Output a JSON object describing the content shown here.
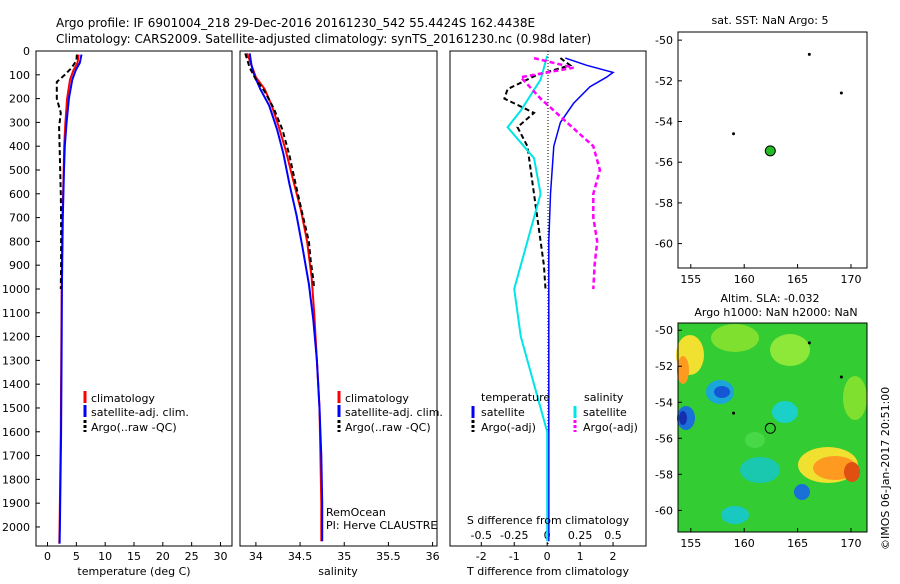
{
  "header": {
    "line1": "Argo profile: IF 6901004_218 29-Dec-2016 20161230_542 55.4424S 162.4438E",
    "line2": "Climatology: CARS2009. Satellite-adjusted climatology: synTS_20161230.nc (0.98d later)"
  },
  "colors": {
    "climatology": "#ff0000",
    "satellite": "#0000ff",
    "argo": "#000000",
    "sat_salinity": "#00e5e5",
    "argo_salinity": "#ff00ff"
  },
  "y_ticks": [
    "0",
    "100",
    "200",
    "300",
    "400",
    "500",
    "600",
    "700",
    "800",
    "900",
    "1000",
    "1100",
    "1200",
    "1300",
    "1400",
    "1500",
    "1600",
    "1700",
    "1800",
    "1900",
    "2000"
  ],
  "chart_data": [
    {
      "type": "line",
      "xlabel": "temperature (deg C)",
      "x_ticks": [
        "0",
        "5",
        "10",
        "15",
        "20",
        "25",
        "30"
      ],
      "xlim": [
        -2,
        32
      ],
      "ylim": [
        2080,
        0
      ],
      "legend": [
        "climatology",
        "satellite-adj. clim.",
        "Argo(..raw -QC)"
      ],
      "series": [
        {
          "name": "climatology",
          "points": [
            [
              5.4,
              15
            ],
            [
              5.2,
              50
            ],
            [
              4.5,
              80
            ],
            [
              3.9,
              120
            ],
            [
              3.4,
              200
            ],
            [
              3.1,
              300
            ],
            [
              2.9,
              400
            ],
            [
              2.8,
              500
            ],
            [
              2.7,
              600
            ],
            [
              2.6,
              700
            ],
            [
              2.55,
              800
            ],
            [
              2.5,
              900
            ],
            [
              2.45,
              1000
            ],
            [
              2.4,
              1200
            ],
            [
              2.35,
              1400
            ],
            [
              2.3,
              1600
            ],
            [
              2.2,
              1800
            ],
            [
              2.1,
              2000
            ],
            [
              2.05,
              2070
            ]
          ]
        },
        {
          "name": "satellite-adj. clim.",
          "points": [
            [
              5.9,
              15
            ],
            [
              5.6,
              50
            ],
            [
              4.9,
              80
            ],
            [
              4.3,
              120
            ],
            [
              3.7,
              200
            ],
            [
              3.3,
              300
            ],
            [
              3.0,
              400
            ],
            [
              2.85,
              500
            ],
            [
              2.75,
              600
            ],
            [
              2.65,
              700
            ],
            [
              2.6,
              800
            ],
            [
              2.55,
              900
            ],
            [
              2.5,
              1000
            ],
            [
              2.45,
              1200
            ],
            [
              2.4,
              1400
            ],
            [
              2.35,
              1600
            ],
            [
              2.25,
              1800
            ],
            [
              2.15,
              2000
            ],
            [
              2.1,
              2070
            ]
          ]
        },
        {
          "name": "Argo(..raw -QC)",
          "points": [
            [
              5.1,
              15
            ],
            [
              5.0,
              40
            ],
            [
              4.2,
              70
            ],
            [
              3.0,
              100
            ],
            [
              1.6,
              130
            ],
            [
              1.6,
              200
            ],
            [
              2.3,
              260
            ],
            [
              2.0,
              320
            ],
            [
              2.1,
              400
            ],
            [
              2.2,
              500
            ],
            [
              2.3,
              600
            ],
            [
              2.35,
              700
            ],
            [
              2.35,
              800
            ],
            [
              2.35,
              900
            ],
            [
              2.3,
              1000
            ]
          ]
        }
      ]
    },
    {
      "type": "line",
      "xlabel": "salinity",
      "x_ticks": [
        "34",
        "34.5",
        "35",
        "35.5",
        "36"
      ],
      "xlim": [
        33.82,
        36.05
      ],
      "ylim": [
        2080,
        0
      ],
      "legend": [
        "climatology",
        "satellite-adj. clim.",
        "Argo(..raw -QC)"
      ],
      "annotations": [
        "RemOcean",
        "PI: Herve CLAUSTRE"
      ],
      "series": [
        {
          "name": "climatology",
          "points": [
            [
              33.9,
              10
            ],
            [
              33.95,
              60
            ],
            [
              34.0,
              110
            ],
            [
              34.1,
              160
            ],
            [
              34.18,
              230
            ],
            [
              34.26,
              320
            ],
            [
              34.34,
              420
            ],
            [
              34.42,
              540
            ],
            [
              34.51,
              670
            ],
            [
              34.58,
              800
            ],
            [
              34.63,
              950
            ],
            [
              34.66,
              1100
            ],
            [
              34.69,
              1300
            ],
            [
              34.72,
              1500
            ],
            [
              34.73,
              1700
            ],
            [
              34.74,
              1900
            ],
            [
              34.74,
              2060
            ]
          ]
        },
        {
          "name": "satellite-adj. clim.",
          "points": [
            [
              33.93,
              10
            ],
            [
              33.95,
              60
            ],
            [
              33.98,
              100
            ],
            [
              34.05,
              160
            ],
            [
              34.15,
              230
            ],
            [
              34.24,
              330
            ],
            [
              34.31,
              430
            ],
            [
              34.38,
              560
            ],
            [
              34.46,
              690
            ],
            [
              34.53,
              830
            ],
            [
              34.6,
              980
            ],
            [
              34.65,
              1130
            ],
            [
              34.69,
              1300
            ],
            [
              34.72,
              1500
            ],
            [
              34.74,
              1700
            ],
            [
              34.75,
              1900
            ],
            [
              34.75,
              2060
            ]
          ]
        },
        {
          "name": "Argo(..raw -QC)",
          "points": [
            [
              33.88,
              10
            ],
            [
              33.93,
              70
            ],
            [
              34.0,
              120
            ],
            [
              34.1,
              170
            ],
            [
              34.2,
              240
            ],
            [
              34.3,
              330
            ],
            [
              34.38,
              440
            ],
            [
              34.45,
              560
            ],
            [
              34.53,
              690
            ],
            [
              34.6,
              800
            ],
            [
              34.62,
              880
            ],
            [
              34.65,
              960
            ],
            [
              34.66,
              1000
            ]
          ]
        }
      ]
    },
    {
      "type": "line",
      "xlabel": "T difference from climatology",
      "x_ticks": [
        "-2",
        "-1",
        "0",
        "1",
        "2"
      ],
      "secondary_xlabel": "S difference from climatology",
      "secondary_x_ticks": [
        "-0.5",
        "-0.25",
        "0",
        "0.25",
        "0.5"
      ],
      "xlim": [
        -2.95,
        3.0
      ],
      "ylim": [
        2080,
        0
      ],
      "legend_temperature_title": "temperature",
      "legend_salinity_title": "salinity",
      "legend": {
        "temperature": [
          "satellite",
          "Argo(-adj)"
        ],
        "salinity": [
          "satellite",
          "Argo(-adj)"
        ]
      },
      "series": [
        {
          "name": "temperature satellite",
          "points": [
            [
              0.55,
              30
            ],
            [
              1.2,
              60
            ],
            [
              2.0,
              90
            ],
            [
              1.8,
              110
            ],
            [
              1.3,
              150
            ],
            [
              0.8,
              220
            ],
            [
              0.4,
              300
            ],
            [
              0.2,
              400
            ],
            [
              0.1,
              600
            ],
            [
              0.05,
              800
            ],
            [
              0.05,
              1000
            ],
            [
              0.05,
              1500
            ],
            [
              0.05,
              2060
            ]
          ]
        },
        {
          "name": "temperature Argo(-adj)",
          "points": [
            [
              0.4,
              30
            ],
            [
              0.7,
              60
            ],
            [
              -0.3,
              100
            ],
            [
              -1.2,
              160
            ],
            [
              -1.3,
              200
            ],
            [
              -0.4,
              260
            ],
            [
              -0.9,
              320
            ],
            [
              -0.6,
              400
            ],
            [
              -0.5,
              500
            ],
            [
              -0.4,
              600
            ],
            [
              -0.3,
              700
            ],
            [
              -0.2,
              800
            ],
            [
              -0.1,
              900
            ],
            [
              -0.05,
              1000
            ]
          ]
        },
        {
          "name": "salinity satellite",
          "points": [
            [
              0.0,
              20
            ],
            [
              -0.05,
              120
            ],
            [
              -0.2,
              250
            ],
            [
              -0.3,
              320
            ],
            [
              -0.1,
              450
            ],
            [
              -0.05,
              600
            ],
            [
              -0.15,
              800
            ],
            [
              -0.25,
              1000
            ],
            [
              -0.2,
              1200
            ],
            [
              -0.1,
              1400
            ],
            [
              0.0,
              1600
            ],
            [
              0.0,
              1800
            ],
            [
              0.0,
              2060
            ]
          ]
        },
        {
          "name": "salinity Argo(-adj)",
          "points": [
            [
              -0.1,
              30
            ],
            [
              0.2,
              70
            ],
            [
              -0.2,
              110
            ],
            [
              -0.05,
              200
            ],
            [
              0.15,
              300
            ],
            [
              0.35,
              400
            ],
            [
              0.4,
              500
            ],
            [
              0.35,
              600
            ],
            [
              0.35,
              700
            ],
            [
              0.38,
              800
            ],
            [
              0.36,
              900
            ],
            [
              0.35,
              1000
            ]
          ]
        }
      ]
    },
    {
      "type": "scatter",
      "title": "sat. SST: NaN Argo: 5",
      "x_ticks": [
        "155",
        "160",
        "165",
        "170"
      ],
      "y_ticks": [
        "-50",
        "-52",
        "-54",
        "-56",
        "-58",
        "-60"
      ],
      "xlim": [
        153.8,
        171.5
      ],
      "ylim": [
        -61.2,
        -49.6
      ],
      "argo_position": {
        "lon": 162.4438,
        "lat": -55.4424
      },
      "other_points": [
        [
          159,
          -54.6
        ],
        [
          166.1,
          -50.7
        ],
        [
          169.1,
          -52.6
        ]
      ]
    },
    {
      "type": "heatmap",
      "title_line1": "Altim. SLA: -0.032",
      "title_line2": "Argo h1000: NaN h2000: NaN",
      "x_ticks": [
        "155",
        "160",
        "165",
        "170"
      ],
      "y_ticks": [
        "-50",
        "-52",
        "-54",
        "-56",
        "-58",
        "-60"
      ],
      "xlim": [
        153.8,
        171.5
      ],
      "ylim": [
        -61.2,
        -49.6
      ],
      "argo_position": {
        "lon": 162.4438,
        "lat": -55.4424
      },
      "other_points": [
        [
          159,
          -54.6
        ],
        [
          166.1,
          -50.7
        ],
        [
          169.1,
          -52.6
        ]
      ]
    }
  ],
  "watermark": "©IMOS 06-Jan-2017 20:51:00"
}
